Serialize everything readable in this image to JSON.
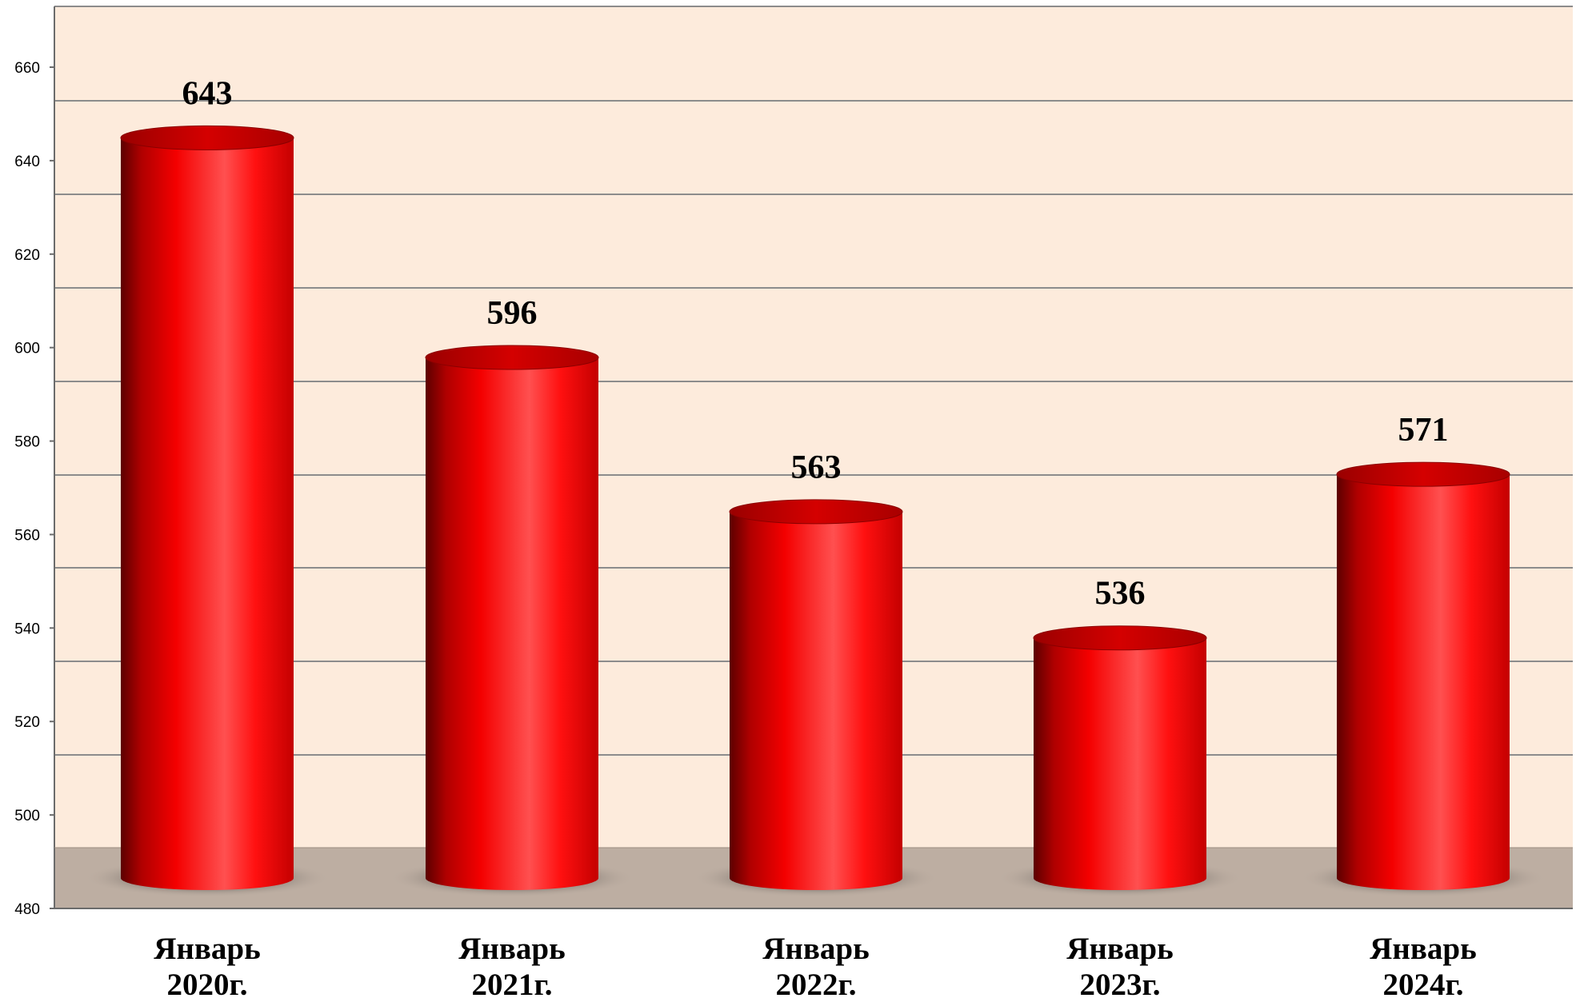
{
  "chart_data": {
    "type": "bar",
    "style": "3d-cylinder",
    "categories": [
      [
        "Январь",
        "2020г."
      ],
      [
        "Январь",
        "2021г."
      ],
      [
        "Январь",
        "2022г."
      ],
      [
        "Январь",
        "2023г."
      ],
      [
        "Январь",
        "2024г."
      ]
    ],
    "values": [
      643,
      596,
      563,
      536,
      571
    ],
    "data_labels": [
      "643",
      "596",
      "563",
      "536",
      "571"
    ],
    "yticks": [
      480,
      500,
      520,
      540,
      560,
      580,
      600,
      620,
      640,
      660
    ],
    "ylim": [
      480,
      660
    ],
    "grid": true,
    "colors": {
      "bar": "#e60000",
      "bar_dark": "#6e0000",
      "bar_light": "#ff5a5a",
      "plot_background": "#fdebdc",
      "floor": "#bdaea2",
      "grid": "#8c8c8c",
      "axis": "#6b6b6b"
    }
  }
}
